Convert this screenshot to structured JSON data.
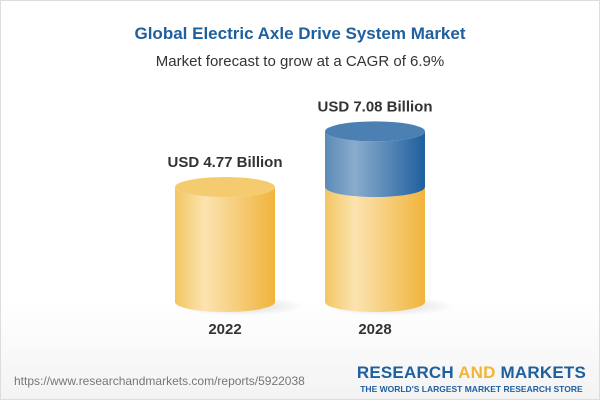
{
  "title": "Global Electric Axle Drive System Market",
  "subtitle": "Market forecast to grow at a CAGR of 6.9%",
  "chart_data": {
    "type": "bar",
    "style": "3d-cylinder",
    "categories": [
      "2022",
      "2028"
    ],
    "values": [
      4.77,
      7.08
    ],
    "data_labels": [
      "USD 4.77 Billion",
      "USD 7.08 Billion"
    ],
    "colors": {
      "base": "#f2c35c",
      "growth": "#4a7fb0"
    }
  },
  "footer": {
    "url": "https://www.researchandmarkets.com/reports/5922038",
    "logo_part1": "RESEARCH ",
    "logo_part2": "AND",
    "logo_part3": " MARKETS",
    "tagline": "THE WORLD'S LARGEST MARKET RESEARCH STORE"
  }
}
